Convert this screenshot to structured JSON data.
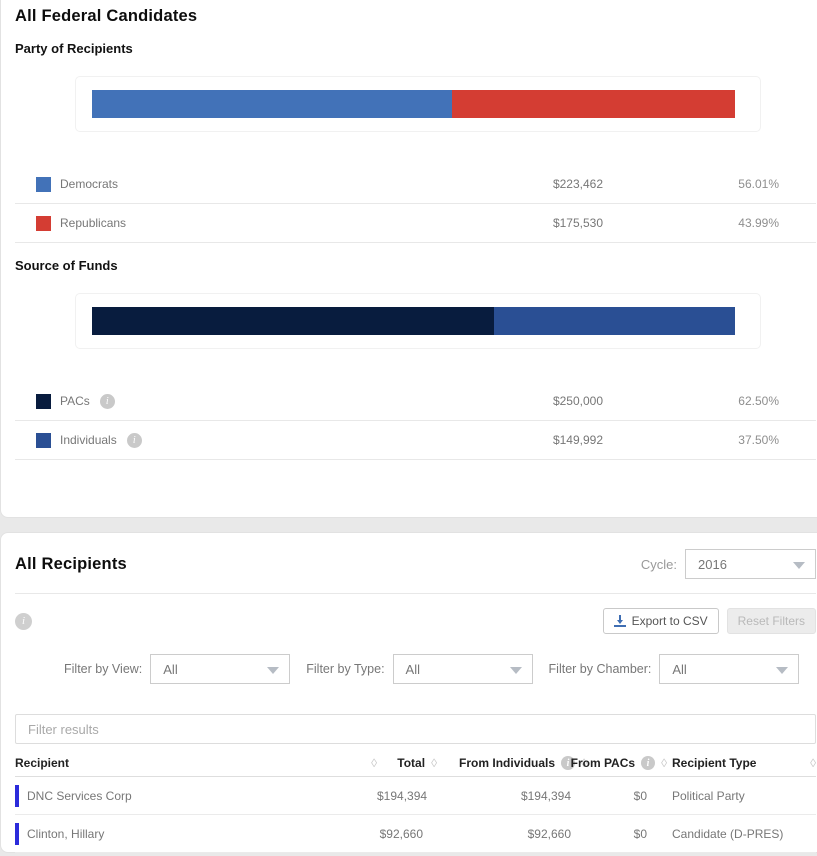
{
  "page": {
    "title": "All Federal Candidates"
  },
  "party_section": {
    "title": "Party of Recipients",
    "legend": [
      {
        "label": "Democrats",
        "amount": "$223,462",
        "percent": "56.01%",
        "color": "#4272b8",
        "has_info": false
      },
      {
        "label": "Republicans",
        "amount": "$175,530",
        "percent": "43.99%",
        "color": "#d43d33",
        "has_info": false
      }
    ]
  },
  "funds_section": {
    "title": "Source of Funds",
    "legend": [
      {
        "label": "PACs",
        "amount": "$250,000",
        "percent": "62.50%",
        "color": "#081c3e",
        "has_info": true
      },
      {
        "label": "Individuals",
        "amount": "$149,992",
        "percent": "37.50%",
        "color": "#2a4f94",
        "has_info": true
      }
    ]
  },
  "chart_data": [
    {
      "type": "bar",
      "variant": "stacked-horizontal-100pct",
      "title": "Party of Recipients",
      "categories": [
        "Democrats",
        "Republicans"
      ],
      "values": [
        223462,
        175530
      ],
      "percents": [
        56.01,
        43.99
      ],
      "colors": [
        "#4272b8",
        "#d43d33"
      ],
      "legend_position": "below"
    },
    {
      "type": "bar",
      "variant": "stacked-horizontal-100pct",
      "title": "Source of Funds",
      "categories": [
        "PACs",
        "Individuals"
      ],
      "values": [
        250000,
        149992
      ],
      "percents": [
        62.5,
        37.5
      ],
      "colors": [
        "#081c3e",
        "#2a4f94"
      ],
      "legend_position": "below"
    }
  ],
  "recipients": {
    "title": "All Recipients",
    "cycle_label": "Cycle:",
    "cycle_value": "2016",
    "export_label": "Export to CSV",
    "reset_label": "Reset Filters",
    "filters": [
      {
        "label": "Filter by View:",
        "value": "All"
      },
      {
        "label": "Filter by Type:",
        "value": "All"
      },
      {
        "label": "Filter by Chamber:",
        "value": "All"
      }
    ],
    "search_placeholder": "Filter results",
    "table": {
      "columns": [
        {
          "label": "Recipient",
          "has_info": false
        },
        {
          "label": "Total",
          "has_info": false
        },
        {
          "label": "From Individuals",
          "has_info": true
        },
        {
          "label": "From PACs",
          "has_info": true
        },
        {
          "label": "Recipient Type",
          "has_info": false
        }
      ],
      "row_accent_color": "#2b2bdb",
      "rows": [
        {
          "recipient": "DNC Services Corp",
          "total": "$194,394",
          "from_individuals": "$194,394",
          "from_pacs": "$0",
          "type": "Political Party"
        },
        {
          "recipient": "Clinton, Hillary",
          "total": "$92,660",
          "from_individuals": "$92,660",
          "from_pacs": "$0",
          "type": "Candidate (D-PRES)"
        }
      ]
    }
  }
}
